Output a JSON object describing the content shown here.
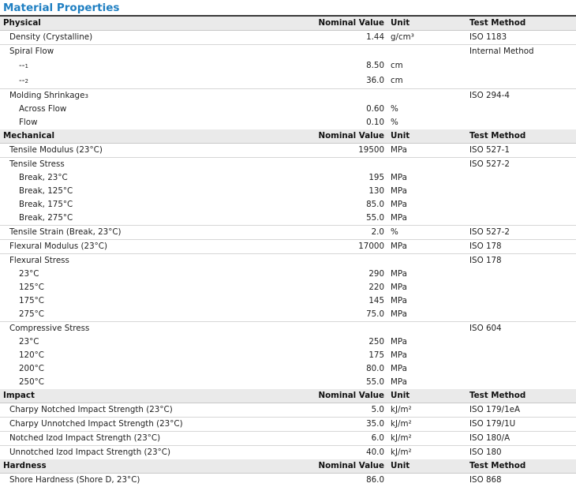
{
  "title": "Material Properties",
  "sections": [
    {
      "name": "Physical",
      "col_value": "Nominal Value",
      "col_unit": "Unit",
      "col_method": "Test Method",
      "rows": [
        {
          "label": "Density (Crystalline)",
          "value": "1.44",
          "unit": "g/cm³",
          "method": "ISO 1183",
          "level": 1,
          "h": 17,
          "border": true
        },
        {
          "label": "Spiral Flow",
          "value": "",
          "unit": "",
          "method": "Internal Method",
          "level": 1,
          "h": 17,
          "border": false
        },
        {
          "label": "--",
          "sup": "1",
          "value": "8.50",
          "unit": "cm",
          "method": "",
          "level": 2,
          "h": 19,
          "border": false
        },
        {
          "label": "--",
          "sup": "2",
          "value": "36.0",
          "unit": "cm",
          "method": "",
          "level": 2,
          "h": 19,
          "border": true
        },
        {
          "label": "Molding Shrinkage",
          "sup": "3",
          "value": "",
          "unit": "",
          "method": "ISO 294-4",
          "level": 1,
          "h": 17,
          "border": false
        },
        {
          "label": "Across Flow",
          "value": "0.60",
          "unit": "%",
          "method": "",
          "level": 2,
          "h": 17,
          "border": false
        },
        {
          "label": "Flow",
          "value": "0.10",
          "unit": "%",
          "method": "",
          "level": 2,
          "h": 17,
          "border": false
        }
      ]
    },
    {
      "name": "Mechanical",
      "col_value": "Nominal Value",
      "col_unit": "Unit",
      "col_method": "Test Method",
      "rows": [
        {
          "label": "Tensile Modulus (23°C)",
          "value": "19500",
          "unit": "MPa",
          "method": "ISO 527-1",
          "level": 1,
          "h": 17,
          "border": true
        },
        {
          "label": "Tensile Stress",
          "value": "",
          "unit": "",
          "method": "ISO 527-2",
          "level": 1,
          "h": 17,
          "border": false
        },
        {
          "label": "Break, 23°C",
          "value": "195",
          "unit": "MPa",
          "method": "",
          "level": 2,
          "h": 17,
          "border": false
        },
        {
          "label": "Break, 125°C",
          "value": "130",
          "unit": "MPa",
          "method": "",
          "level": 2,
          "h": 17,
          "border": false
        },
        {
          "label": "Break, 175°C",
          "value": "85.0",
          "unit": "MPa",
          "method": "",
          "level": 2,
          "h": 17,
          "border": false
        },
        {
          "label": "Break, 275°C",
          "value": "55.0",
          "unit": "MPa",
          "method": "",
          "level": 2,
          "h": 17,
          "border": true
        },
        {
          "label": "Tensile Strain (Break, 23°C)",
          "value": "2.0",
          "unit": "%",
          "method": "ISO 527-2",
          "level": 1,
          "h": 17,
          "border": true
        },
        {
          "label": "Flexural Modulus (23°C)",
          "value": "17000",
          "unit": "MPa",
          "method": "ISO 178",
          "level": 1,
          "h": 17,
          "border": true
        },
        {
          "label": "Flexural Stress",
          "value": "",
          "unit": "",
          "method": "ISO 178",
          "level": 1,
          "h": 17,
          "border": false
        },
        {
          "label": "23°C",
          "value": "290",
          "unit": "MPa",
          "method": "",
          "level": 2,
          "h": 17,
          "border": false
        },
        {
          "label": "125°C",
          "value": "220",
          "unit": "MPa",
          "method": "",
          "level": 2,
          "h": 17,
          "border": false
        },
        {
          "label": "175°C",
          "value": "145",
          "unit": "MPa",
          "method": "",
          "level": 2,
          "h": 17,
          "border": false
        },
        {
          "label": "275°C",
          "value": "75.0",
          "unit": "MPa",
          "method": "",
          "level": 2,
          "h": 17,
          "border": true
        },
        {
          "label": "Compressive Stress",
          "value": "",
          "unit": "",
          "method": "ISO 604",
          "level": 1,
          "h": 17,
          "border": false
        },
        {
          "label": "23°C",
          "value": "250",
          "unit": "MPa",
          "method": "",
          "level": 2,
          "h": 17,
          "border": false
        },
        {
          "label": "120°C",
          "value": "175",
          "unit": "MPa",
          "method": "",
          "level": 2,
          "h": 17,
          "border": false
        },
        {
          "label": "200°C",
          "value": "80.0",
          "unit": "MPa",
          "method": "",
          "level": 2,
          "h": 17,
          "border": false
        },
        {
          "label": "250°C",
          "value": "55.0",
          "unit": "MPa",
          "method": "",
          "level": 2,
          "h": 17,
          "border": false
        }
      ]
    },
    {
      "name": "Impact",
      "col_value": "Nominal Value",
      "col_unit": "Unit",
      "col_method": "Test Method",
      "rows": [
        {
          "label": "Charpy Notched Impact Strength (23°C)",
          "value": "5.0",
          "unit": "kJ/m²",
          "method": "ISO 179/1eA",
          "level": 1,
          "h": 17,
          "border": true
        },
        {
          "label": "Charpy Unnotched Impact Strength (23°C)",
          "value": "35.0",
          "unit": "kJ/m²",
          "method": "ISO 179/1U",
          "level": 1,
          "h": 17,
          "border": true
        },
        {
          "label": "Notched Izod Impact Strength (23°C)",
          "value": "6.0",
          "unit": "kJ/m²",
          "method": "ISO 180/A",
          "level": 1,
          "h": 17,
          "border": true
        },
        {
          "label": "Unnotched Izod Impact Strength (23°C)",
          "value": "40.0",
          "unit": "kJ/m²",
          "method": "ISO 180",
          "level": 1,
          "h": 17,
          "border": false
        }
      ]
    },
    {
      "name": "Hardness",
      "col_value": "Nominal Value",
      "col_unit": "Unit",
      "col_method": "Test Method",
      "rows": [
        {
          "label": "Shore Hardness (Shore D, 23°C)",
          "value": "86.0",
          "unit": "",
          "method": "ISO 868",
          "level": 1,
          "h": 17,
          "border": false
        }
      ]
    }
  ]
}
